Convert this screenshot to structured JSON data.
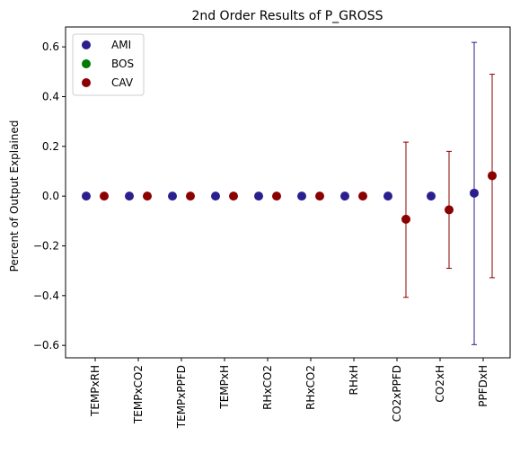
{
  "chart_data": {
    "type": "scatter",
    "title": "2nd Order Results of P_GROSS",
    "xlabel": "",
    "ylabel": "Percent of Output Explained",
    "categories": [
      "TEMPxRH",
      "TEMPxCO2",
      "TEMPxPPFD",
      "TEMPxH",
      "RHxCO2",
      "RHxCO2",
      "RHxH",
      "CO2xPPFD",
      "CO2xH",
      "PPFDxH"
    ],
    "ylim": [
      -0.65,
      0.68
    ],
    "yticks": [
      -0.6,
      -0.4,
      -0.2,
      0.0,
      0.2,
      0.4,
      0.6
    ],
    "ytick_labels": [
      "−0.6",
      "−0.4",
      "−0.2",
      "0.0",
      "0.2",
      "0.4",
      "0.6"
    ],
    "grid": false,
    "legend_position": "top-left",
    "series": [
      {
        "name": "AMI",
        "color": "#2b1e8f",
        "values": [
          0,
          0,
          0,
          0,
          0,
          0,
          0,
          0,
          0,
          0.012
        ],
        "error_low": [
          0,
          0,
          0,
          0,
          0,
          0,
          0,
          0,
          0,
          -0.597
        ],
        "error_high": [
          0,
          0,
          0,
          0,
          0,
          0,
          0,
          0,
          0,
          0.618
        ]
      },
      {
        "name": "BOS",
        "color": "#007a00",
        "values": [],
        "error_low": [],
        "error_high": []
      },
      {
        "name": "CAV",
        "color": "#8b0000",
        "values": [
          0,
          0,
          0,
          0,
          0,
          0,
          0,
          -0.093,
          -0.055,
          0.082
        ],
        "error_low": [
          0,
          0,
          0,
          0,
          0,
          0,
          0,
          -0.407,
          -0.29,
          -0.328
        ],
        "error_high": [
          0,
          0,
          0,
          0,
          0,
          0,
          0,
          0.217,
          0.18,
          0.49
        ]
      }
    ]
  }
}
